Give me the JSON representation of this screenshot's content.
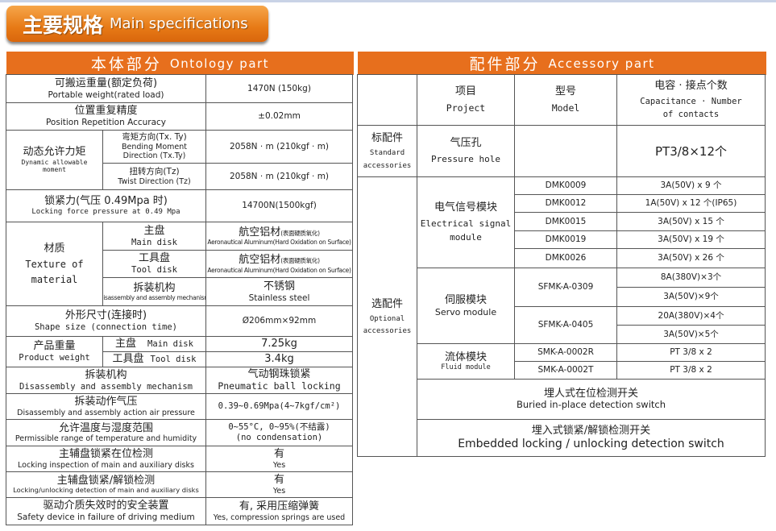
{
  "banner": {
    "zh": "主要规格",
    "en": "Main specifications"
  },
  "ontology": {
    "header_zh": "本体部分",
    "header_en": "Ontology part",
    "rows": [
      {
        "zh": "可搬运重量(额定负荷)",
        "en": "Portable weight(rated load)",
        "value": "1470N (150kg)"
      },
      {
        "zh": "位置重复精度",
        "en": "Position Repetition Accuracy",
        "value": "±0.02mm"
      },
      {
        "zh": "动态允许力矩",
        "en": "Dynamic allowable moment",
        "sub": [
          {
            "zh": "弯矩方向(Tx. Ty)",
            "en": "Bending Moment",
            "en2": "Direction (Tx.Ty)",
            "value": "2058N · m (210kgf · m)"
          },
          {
            "zh": "扭转方向(Tz)",
            "en": "Twist Direction (Tz)",
            "value": "2058N · m (210kgf · m)"
          }
        ]
      },
      {
        "zh": "锁紧力(气压 0.49Mpa 时)",
        "en": "Locking force pressure at 0.49 Mpa",
        "value": "14700N(1500kgf)"
      },
      {
        "zh": "材质",
        "en": "Texture of",
        "en2": "material",
        "sub": [
          {
            "zh": "主盘",
            "en": "Main disk",
            "value_zh": "航空铝材",
            "value_zh_small": "(表面硬质氧化)",
            "value_en": "Aeronautical Aluminum(Hard Oxidation on Surface)"
          },
          {
            "zh": "工具盘",
            "en": "Tool disk",
            "value_zh": "航空铝材",
            "value_zh_small": "(表面硬质氧化)",
            "value_en": "Aeronautical Aluminum(Hard Oxidation on Surface)"
          },
          {
            "zh": "拆装机构",
            "en": "Disassembly and assembly mechanism",
            "value_zh": "不锈钢",
            "value_en": "Stainless steel"
          }
        ]
      },
      {
        "zh": "外形尺寸(连接时)",
        "en": "Shape size (connection time)",
        "value": "Ø206mm×92mm"
      },
      {
        "zh": "产品重量",
        "en": "Product weight",
        "sub": [
          {
            "zh": "主盘",
            "en": "Main disk",
            "value": "7.25kg"
          },
          {
            "zh": "工具盘",
            "en": "Tool disk",
            "value": "3.4kg"
          }
        ]
      },
      {
        "zh": "拆装机构",
        "en": "Disassembly and assembly mechanism",
        "value_zh": "气动钢珠锁紧",
        "value_en": "Pneumatic ball locking"
      },
      {
        "zh": "拆装动作气压",
        "en": "Disassembly and assembly action air pressure",
        "value": "0.39~0.69Mpa(4~7kgf/cm²)"
      },
      {
        "zh": "允许温度与湿度范围",
        "en": "Permissible range of temperature and humidity",
        "value_zh": "0~55°C, 0~95%(不结露)",
        "value_en": "(no condensation)"
      },
      {
        "zh": "主辅盘锁紧在位检测",
        "en": "Locking inspection of main and auxiliary disks",
        "value_zh": "有",
        "value_en": "Yes"
      },
      {
        "zh": "主辅盘锁紧/解锁检测",
        "en": "Locking/unlocking detection of main and auxiliary disks",
        "value_zh": "有",
        "value_en": "Yes"
      },
      {
        "zh": "驱动介质失效时的安全装置",
        "en": "Safety device in failure of driving medium",
        "value_zh": "有, 采用压缩弹簧",
        "value_en": "Yes, compression springs are used"
      }
    ]
  },
  "accessory": {
    "header_zh": "配件部分",
    "header_en": "Accessory part",
    "columns": {
      "project_zh": "项目",
      "project_en": "Project",
      "model_zh": "型号",
      "model_en": "Model",
      "cap_zh": "电容 · 接点个数",
      "cap_en": "Capacitance · Number",
      "cap_en2": "of contacts"
    },
    "standard": {
      "zh": "标配件",
      "en": "Standard",
      "en2": "accessories",
      "item_zh": "气压孔",
      "item_en": "Pressure hole",
      "model": "",
      "value": "PT3/8×12个"
    },
    "optional": {
      "zh": "选配件",
      "en": "Optional",
      "en2": "accessories",
      "electrical": {
        "zh": "电气信号模块",
        "en": "Electrical signal",
        "en2": "module",
        "rows": [
          {
            "model": "DMK0009",
            "value": "3A(50V) x 9 个"
          },
          {
            "model": "DMK0012",
            "value": "1A(50V) x 12 个(IP65)"
          },
          {
            "model": "DMK0015",
            "value": "3A(50V) x 15 个"
          },
          {
            "model": "DMK0019",
            "value": "3A(50V) x 19 个"
          },
          {
            "model": "DMK0026",
            "value": "3A(50V) x 26 个"
          }
        ]
      },
      "servo": {
        "zh": "伺服模块",
        "en": "Servo module",
        "rows": [
          {
            "model": "SFMK-A-0309",
            "values": [
              "8A(380V)×3个",
              "3A(50V)×9个"
            ]
          },
          {
            "model": "SFMK-A-0405",
            "values": [
              "20A(380V)×4个",
              "3A(50V)×5个"
            ]
          }
        ]
      },
      "fluid": {
        "zh": "流体模块",
        "en": "Fluid module",
        "rows": [
          {
            "model": "SMK-A-0002R",
            "value": "PT 3/8 x 2"
          },
          {
            "model": "SMK-A-0002T",
            "value": "PT 3/8 x 2"
          }
        ]
      },
      "buried": {
        "zh": "埋人式在位检测开关",
        "en": "Buried in-place detection switch"
      },
      "embedded": {
        "zh": "埋入式锁紧/解锁检测开关",
        "en": "Embedded locking / unlocking detection switch"
      }
    }
  }
}
